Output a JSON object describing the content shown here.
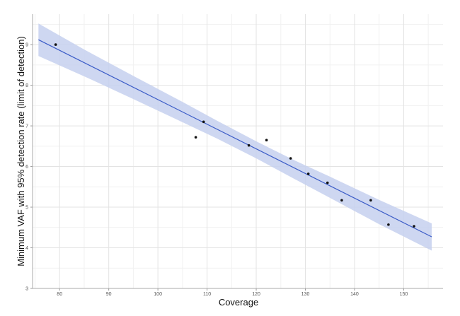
{
  "chart_data": {
    "type": "scatter",
    "title": "",
    "xlabel": "Coverage",
    "ylabel": "Minimum VAF with 95% detection rate (limit of detection)",
    "xlim": [
      74.5,
      158
    ],
    "ylim": [
      3,
      9.75
    ],
    "x_ticks": [
      80,
      90,
      100,
      110,
      120,
      130,
      140,
      150
    ],
    "y_ticks": [
      3,
      4,
      5,
      6,
      7,
      8,
      9
    ],
    "grid": true,
    "points": [
      {
        "x": 79.2,
        "y": 9.0
      },
      {
        "x": 107.7,
        "y": 6.72
      },
      {
        "x": 109.3,
        "y": 7.1
      },
      {
        "x": 118.5,
        "y": 6.52
      },
      {
        "x": 122.1,
        "y": 6.65
      },
      {
        "x": 127.0,
        "y": 6.2
      },
      {
        "x": 130.6,
        "y": 5.82
      },
      {
        "x": 134.5,
        "y": 5.6
      },
      {
        "x": 137.4,
        "y": 5.17
      },
      {
        "x": 143.3,
        "y": 5.17
      },
      {
        "x": 146.9,
        "y": 4.57
      },
      {
        "x": 152.1,
        "y": 4.53
      }
    ],
    "fit_line": {
      "x": [
        75.7,
        155.7
      ],
      "y": [
        9.12,
        4.27
      ]
    },
    "confidence_band": {
      "x": [
        75.7,
        85,
        95,
        105,
        112,
        120,
        128,
        135,
        145,
        155.7
      ],
      "upper": [
        9.52,
        8.88,
        8.23,
        7.59,
        7.13,
        6.62,
        6.14,
        5.75,
        5.18,
        4.6
      ],
      "lower": [
        8.72,
        8.22,
        7.66,
        7.09,
        6.69,
        6.2,
        5.68,
        5.23,
        4.58,
        3.93
      ]
    },
    "colors": {
      "line": "#3a5bc7",
      "band": "#c5d0ee",
      "point": "#111111",
      "grid": "#e3e3e3",
      "minor_grid": "#f1f1f1"
    }
  }
}
